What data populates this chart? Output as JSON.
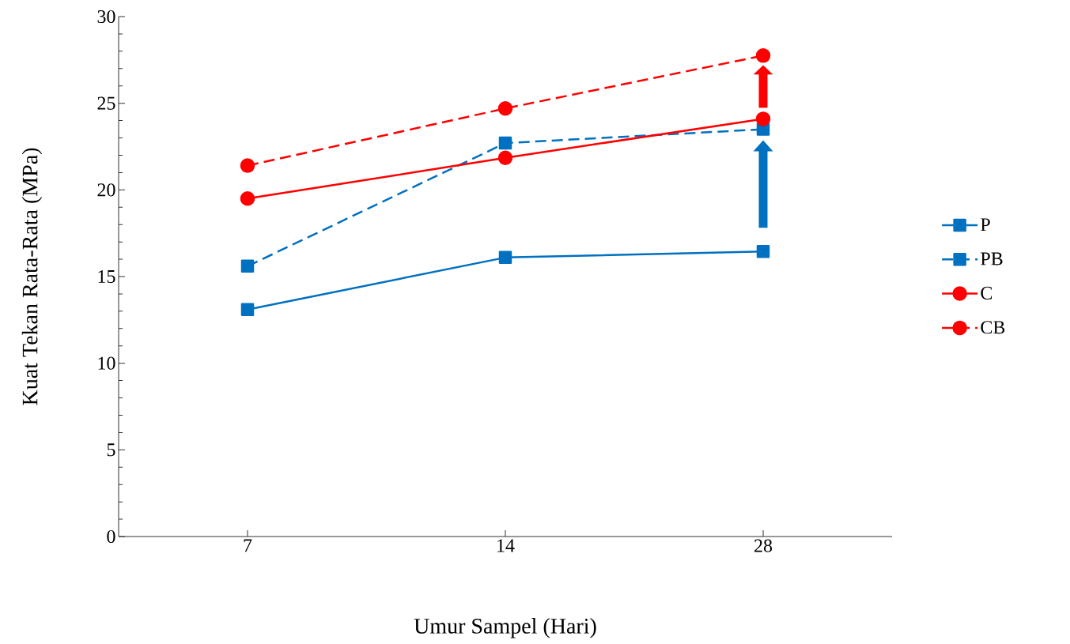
{
  "chart_data": {
    "type": "line",
    "xlabel": "Umur Sampel (Hari)",
    "ylabel": "Kuat Tekan Rata-Rata (MPa)",
    "categories": [
      "7",
      "14",
      "28"
    ],
    "series": [
      {
        "name": "P",
        "color": "#0070c0",
        "values": [
          13.1,
          16.1,
          16.45
        ],
        "marker": "square",
        "line_style": "solid"
      },
      {
        "name": "PB",
        "color": "#0070c0",
        "values": [
          15.6,
          22.7,
          23.5
        ],
        "marker": "square",
        "line_style": "dashed"
      },
      {
        "name": "C",
        "color": "#ff0000",
        "values": [
          19.5,
          21.85,
          24.1
        ],
        "marker": "circle",
        "line_style": "solid"
      },
      {
        "name": "CB",
        "color": "#ff0000",
        "values": [
          21.4,
          24.7,
          27.75
        ],
        "marker": "circle",
        "line_style": "dashed"
      }
    ],
    "ylim": [
      0,
      30
    ],
    "yticks": [
      0,
      5,
      10,
      15,
      20,
      25,
      30
    ],
    "grid": false,
    "legend": "right"
  }
}
